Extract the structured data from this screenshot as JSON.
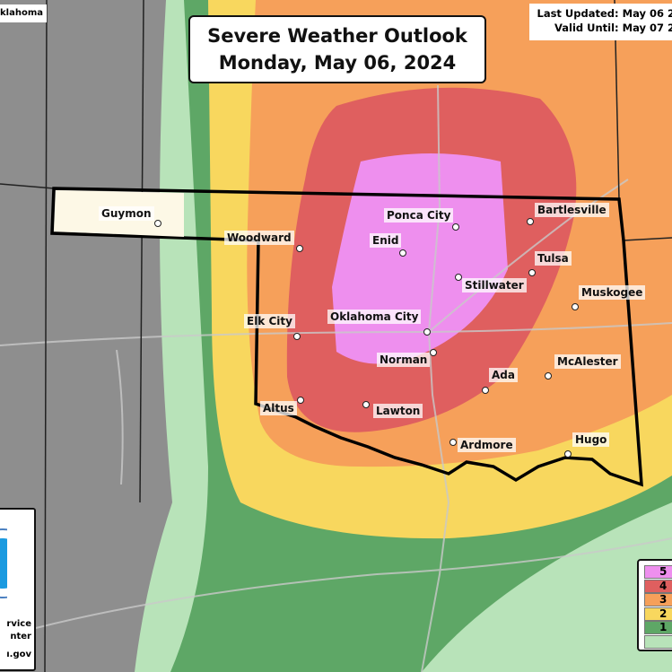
{
  "title": {
    "line1": "Severe Weather Outlook",
    "line2": "Monday, May 06, 2024"
  },
  "updated": {
    "last_updated": "Last Updated: May 06 2",
    "valid_until": "Valid Until: May 07 2"
  },
  "state_label": "klahoma",
  "risk_colors": {
    "5": "#ee8fee",
    "4": "#df5f5f",
    "3": "#f6a05a",
    "2": "#f8d75e",
    "1": "#5ea766",
    "0": "#b8e3b9",
    "none": "#8e8e8e"
  },
  "cities": [
    {
      "name": "Guymon"
    },
    {
      "name": "Woodward"
    },
    {
      "name": "Ponca City"
    },
    {
      "name": "Bartlesville"
    },
    {
      "name": "Enid"
    },
    {
      "name": "Tulsa"
    },
    {
      "name": "Stillwater"
    },
    {
      "name": "Muskogee"
    },
    {
      "name": "Elk City"
    },
    {
      "name": "Oklahoma City"
    },
    {
      "name": "Norman"
    },
    {
      "name": "McAlester"
    },
    {
      "name": "Ada"
    },
    {
      "name": "Altus"
    },
    {
      "name": "Lawton"
    },
    {
      "name": "Ardmore"
    },
    {
      "name": "Hugo"
    }
  ],
  "legend": {
    "items": [
      "5",
      "4",
      "3",
      "2",
      "1",
      ""
    ]
  },
  "logo": {
    "line1": "rvice",
    "line2": "nter",
    "line3": "ı.gov"
  }
}
